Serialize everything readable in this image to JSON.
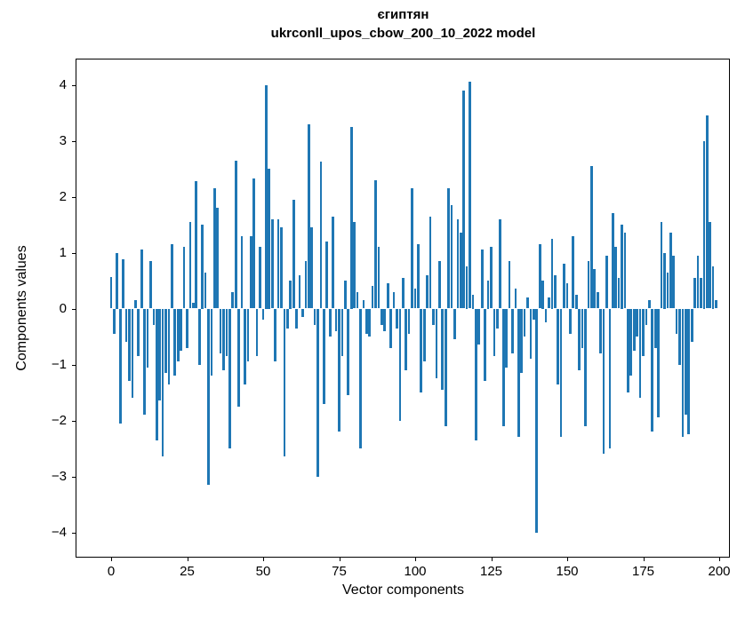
{
  "chart_data": {
    "type": "bar",
    "title_line1": "єгиптян",
    "title_line2": "ukrconll_upos_cbow_200_10_2022 model",
    "xlabel": "Vector components",
    "ylabel": "Components values",
    "x_ticks": [
      0,
      25,
      50,
      75,
      100,
      125,
      150,
      175,
      200
    ],
    "y_ticks": [
      4,
      3,
      2,
      1,
      0,
      -1,
      -2,
      -3,
      -4
    ],
    "xlim": [
      -11.7,
      203.4
    ],
    "ylim": [
      -4.46,
      4.46
    ],
    "grid": false,
    "legend": null,
    "bar_color": "#1f77b4",
    "n_components": 200,
    "values": [
      0.57,
      -0.45,
      1.0,
      -2.05,
      0.88,
      -0.6,
      -1.3,
      -1.6,
      0.15,
      -0.85,
      1.05,
      -1.9,
      -1.05,
      0.85,
      -0.3,
      -2.35,
      -1.65,
      -2.65,
      -1.15,
      -1.35,
      1.15,
      -1.2,
      -0.95,
      -0.75,
      1.1,
      -0.7,
      1.55,
      0.1,
      2.28,
      -1.0,
      1.5,
      0.65,
      -3.15,
      -1.2,
      2.15,
      1.8,
      -0.8,
      -1.1,
      -0.85,
      -2.5,
      0.3,
      2.65,
      -1.75,
      1.3,
      -1.35,
      -0.95,
      1.3,
      2.33,
      -0.85,
      1.1,
      -0.2,
      4.0,
      2.5,
      1.6,
      -0.95,
      1.6,
      1.45,
      -2.65,
      -0.35,
      0.5,
      1.95,
      -0.35,
      0.6,
      -0.15,
      0.85,
      3.3,
      1.45,
      -0.3,
      -3.0,
      2.63,
      -1.7,
      1.2,
      -0.5,
      1.65,
      -0.4,
      -2.2,
      -0.85,
      0.5,
      -1.55,
      3.25,
      1.55,
      0.3,
      -2.5,
      0.15,
      -0.45,
      -0.5,
      0.4,
      2.3,
      1.1,
      -0.3,
      -0.4,
      0.45,
      -0.7,
      0.3,
      -0.35,
      -2.0,
      0.55,
      -1.1,
      -0.45,
      2.15,
      0.35,
      1.15,
      -1.5,
      -0.95,
      0.6,
      1.65,
      -0.3,
      -1.25,
      0.85,
      -1.45,
      -2.1,
      2.15,
      1.85,
      -0.55,
      1.6,
      1.35,
      3.9,
      0.75,
      4.05,
      0.25,
      -2.35,
      -0.65,
      1.05,
      -1.3,
      0.5,
      1.1,
      -0.85,
      -0.35,
      1.6,
      -2.1,
      -1.05,
      0.85,
      -0.8,
      0.35,
      -2.3,
      -1.15,
      -0.5,
      0.2,
      -0.9,
      -0.2,
      -4.0,
      1.15,
      0.5,
      -0.25,
      0.2,
      1.25,
      0.6,
      -1.35,
      -2.3,
      0.8,
      0.45,
      -0.45,
      1.3,
      0.25,
      -1.1,
      -0.7,
      -2.1,
      0.85,
      2.55,
      0.7,
      0.3,
      -0.8,
      -2.6,
      0.95,
      -2.5,
      1.7,
      1.1,
      0.55,
      1.5,
      1.35,
      -1.5,
      -1.2,
      -0.75,
      -0.5,
      -1.6,
      -0.85,
      -0.3,
      0.15,
      -2.2,
      -0.7,
      -1.95,
      1.55,
      1.0,
      0.65,
      1.35,
      0.95,
      -0.45,
      -1.0,
      -2.3,
      -1.9,
      -2.25,
      -0.6,
      0.55,
      0.95,
      0.55,
      3.0,
      3.45,
      1.55,
      0.75,
      0.15
    ]
  }
}
